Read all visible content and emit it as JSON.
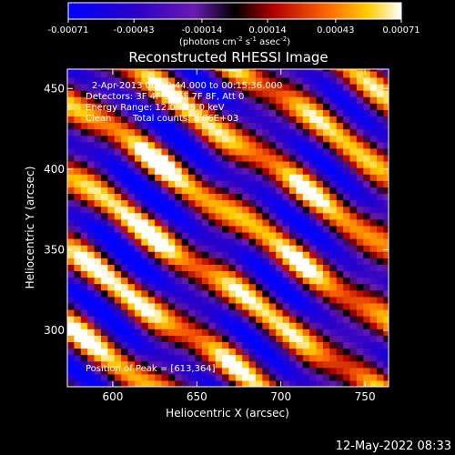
{
  "chart_data": {
    "type": "heatmap",
    "title": "Reconstructed RHESSI Image",
    "xlabel": "Heliocentric X (arcsec)",
    "ylabel": "Heliocentric Y (arcsec)",
    "xlim": [
      573,
      764
    ],
    "ylim": [
      265,
      462
    ],
    "x_ticks": [
      600,
      650,
      700,
      750
    ],
    "y_ticks": [
      300,
      350,
      400,
      450
    ],
    "colorbar": {
      "ticks": [
        "-0.00071",
        "-0.00043",
        "-0.00014",
        "0.00014",
        "0.00043",
        "0.00071"
      ],
      "units_text": "(photons cm",
      "units_exp1": "-2",
      "units_mid": " s",
      "units_exp2": "-1",
      "units_end": " asec",
      "units_exp3": "-2",
      "units_close": ")",
      "range": [
        -0.00071,
        0.00071
      ]
    },
    "annotations": {
      "time": "2-Apr-2013 00:10:44.000 to 00:15:36.000",
      "detectors": "Detectors: 3F 4F 5F 6F 7F 8F, Att 0",
      "energy": "Energy Range: 12.0 - 25.0 keV",
      "clean": "Clean",
      "counts": "Total counts: 8.06E+03",
      "peak": "Position of Peak = [613,364]"
    },
    "stripe_model": {
      "direction_deg": -36,
      "period_arcsec": 38,
      "peak_position": [
        613,
        364
      ],
      "peak_value": 0.00071
    }
  },
  "footer": {
    "date": "12-May-2022 08:33"
  }
}
